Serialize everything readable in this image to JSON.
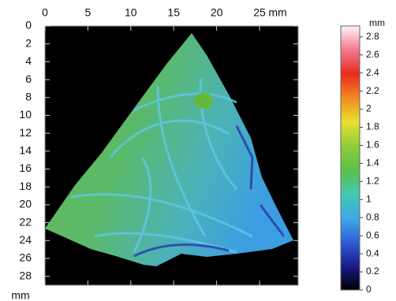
{
  "chart_data": {
    "type": "height-map",
    "x_unit": "mm",
    "y_unit": "mm",
    "xlim": [
      0,
      29.5
    ],
    "xticks": [
      0,
      5,
      10,
      15,
      20,
      25
    ],
    "ylim": [
      0,
      29
    ],
    "yticks": [
      0,
      2,
      4,
      6,
      8,
      10,
      12,
      14,
      16,
      18,
      20,
      22,
      24,
      26,
      28
    ],
    "colorbar": {
      "unit": "mm",
      "clim": [
        0,
        2.92
      ],
      "ticks": [
        0,
        0.2,
        0.4,
        0.6,
        0.8,
        1,
        1.2,
        1.4,
        1.6,
        1.8,
        2,
        2.2,
        2.4,
        2.6,
        2.8
      ],
      "colormap": [
        "#000000",
        "#1a1a8c",
        "#2f5fd8",
        "#3fa9e8",
        "#45c8b0",
        "#5cc04a",
        "#8fcc3a",
        "#e8e030",
        "#f08a20",
        "#e82a20",
        "#f07a90",
        "#fff4f8"
      ]
    }
  }
}
